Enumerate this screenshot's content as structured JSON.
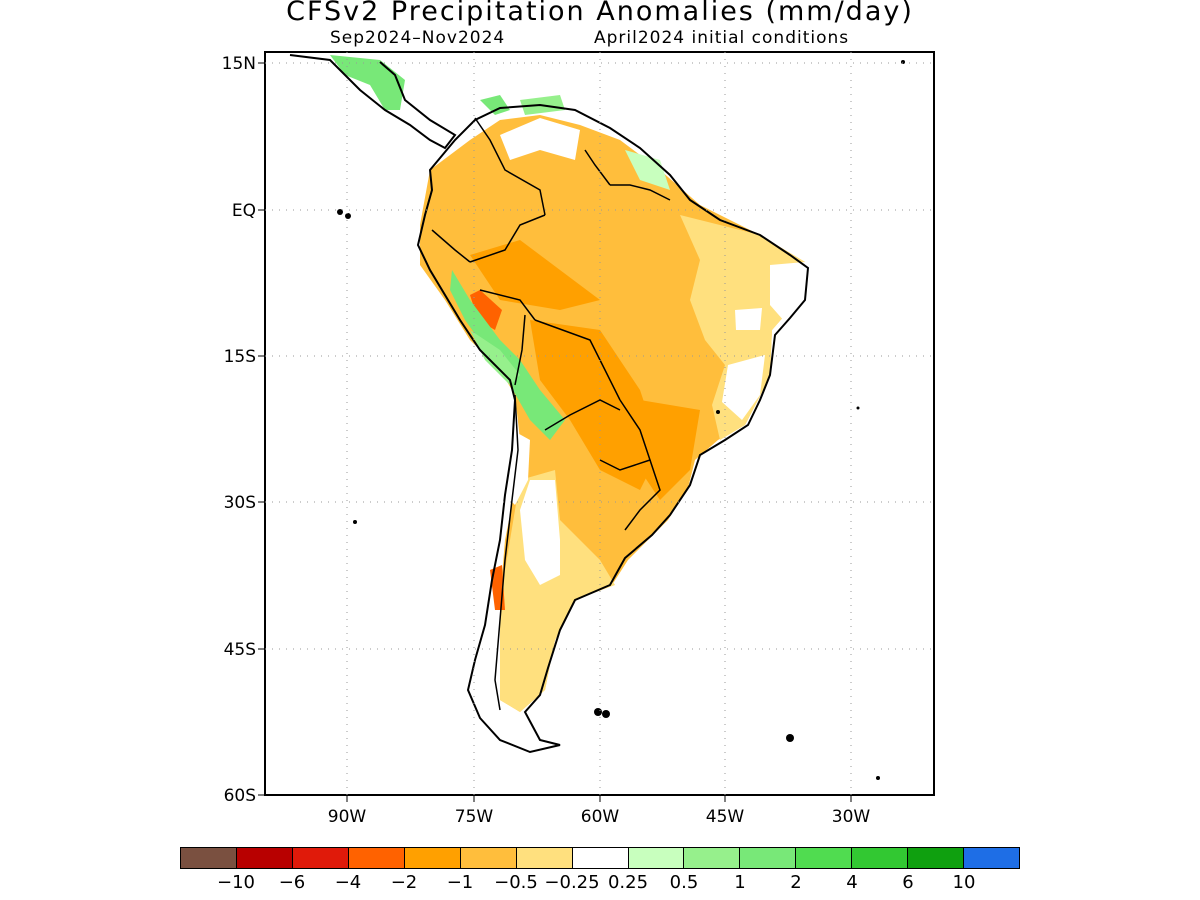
{
  "title": "CFSv2 Precipitation Anomalies (mm/day)",
  "subtitle_left": "Sep2024–Nov2024",
  "subtitle_right": "April2024 initial conditions",
  "map": {
    "lat_labels": [
      "15N",
      "EQ",
      "15S",
      "30S",
      "45S",
      "60S"
    ],
    "lon_labels": [
      "90W",
      "75W",
      "60W",
      "45W",
      "30W"
    ],
    "grid": "dotted"
  },
  "colorbar": {
    "colors": [
      "#7a5040",
      "#b80000",
      "#e01a0a",
      "#ff6200",
      "#ffa000",
      "#ffbe3c",
      "#ffe07e",
      "#ffffff",
      "#c8ffbe",
      "#96f08c",
      "#78e878",
      "#50dc50",
      "#32c832",
      "#0fa00f",
      "#1e6ee6"
    ],
    "labels": [
      "−10",
      "−6",
      "−4",
      "−2",
      "−1",
      "−0.5",
      "−0.25",
      "0.25",
      "0.5",
      "1",
      "2",
      "4",
      "6",
      "10"
    ]
  }
}
